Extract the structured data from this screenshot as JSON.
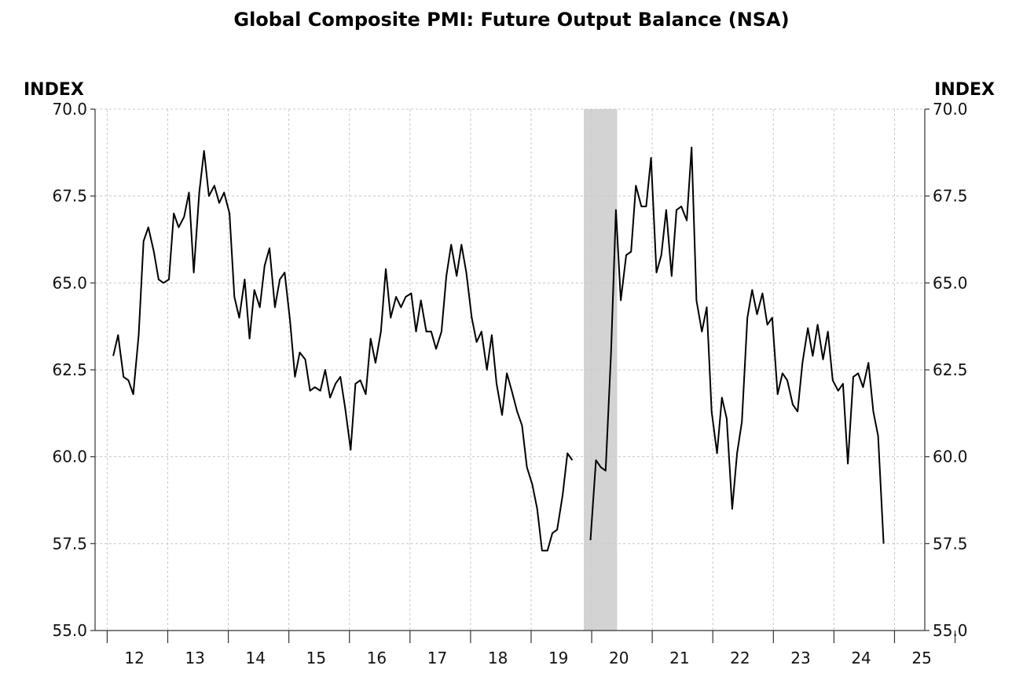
{
  "chart_data": {
    "type": "line",
    "title": "Global Composite PMI: Future Output Balance (NSA)",
    "ylabel_left": "INDEX",
    "ylabel_right": "INDEX",
    "ylim": [
      55.0,
      70.0
    ],
    "yticks": [
      "55.0",
      "57.5",
      "60.0",
      "62.5",
      "65.0",
      "67.5",
      "70.0"
    ],
    "yticks_right": [
      "55.0",
      "57.5",
      "60.0",
      "62.5",
      "65.0",
      "67.5",
      "70.0"
    ],
    "xlim": [
      2011.8,
      2025.5
    ],
    "xtick_labels": [
      "12",
      "13",
      "14",
      "15",
      "16",
      "17",
      "18",
      "19",
      "20",
      "21",
      "22",
      "23",
      "24",
      "25"
    ],
    "grid": true,
    "shaded_period": [
      2019.87,
      2020.42
    ],
    "series": [
      {
        "values": [
          [
            2012.1,
            62.9
          ],
          [
            2012.18,
            63.5
          ],
          [
            2012.27,
            62.3
          ],
          [
            2012.35,
            62.2
          ],
          [
            2012.43,
            61.8
          ],
          [
            2012.52,
            63.5
          ],
          [
            2012.6,
            66.2
          ],
          [
            2012.68,
            66.6
          ],
          [
            2012.77,
            65.9
          ],
          [
            2012.85,
            65.1
          ],
          [
            2012.93,
            65.0
          ],
          [
            2013.02,
            65.1
          ],
          [
            2013.1,
            67.0
          ],
          [
            2013.18,
            66.6
          ],
          [
            2013.27,
            66.9
          ],
          [
            2013.35,
            67.6
          ],
          [
            2013.43,
            65.3
          ],
          [
            2013.52,
            67.6
          ],
          [
            2013.6,
            68.8
          ],
          [
            2013.68,
            67.5
          ],
          [
            2013.77,
            67.8
          ],
          [
            2013.85,
            67.3
          ],
          [
            2013.93,
            67.6
          ],
          [
            2014.02,
            67.0
          ],
          [
            2014.1,
            64.6
          ],
          [
            2014.18,
            64.0
          ],
          [
            2014.27,
            65.1
          ],
          [
            2014.35,
            63.4
          ],
          [
            2014.43,
            64.8
          ],
          [
            2014.52,
            64.3
          ],
          [
            2014.6,
            65.5
          ],
          [
            2014.68,
            66.0
          ],
          [
            2014.77,
            64.3
          ],
          [
            2014.85,
            65.1
          ],
          [
            2014.93,
            65.3
          ],
          [
            2015.02,
            63.9
          ],
          [
            2015.1,
            62.3
          ],
          [
            2015.18,
            63.0
          ],
          [
            2015.27,
            62.8
          ],
          [
            2015.35,
            61.9
          ],
          [
            2015.43,
            62.0
          ],
          [
            2015.52,
            61.9
          ],
          [
            2015.6,
            62.5
          ],
          [
            2015.68,
            61.7
          ],
          [
            2015.77,
            62.1
          ],
          [
            2015.85,
            62.3
          ],
          [
            2015.93,
            61.4
          ],
          [
            2016.02,
            60.2
          ],
          [
            2016.1,
            62.1
          ],
          [
            2016.18,
            62.2
          ],
          [
            2016.27,
            61.8
          ],
          [
            2016.35,
            63.4
          ],
          [
            2016.43,
            62.7
          ],
          [
            2016.52,
            63.6
          ],
          [
            2016.6,
            65.4
          ],
          [
            2016.68,
            64.0
          ],
          [
            2016.77,
            64.6
          ],
          [
            2016.85,
            64.3
          ],
          [
            2016.93,
            64.6
          ],
          [
            2017.02,
            64.7
          ],
          [
            2017.1,
            63.6
          ],
          [
            2017.18,
            64.5
          ],
          [
            2017.27,
            63.6
          ],
          [
            2017.35,
            63.6
          ],
          [
            2017.43,
            63.1
          ],
          [
            2017.52,
            63.6
          ],
          [
            2017.6,
            65.2
          ],
          [
            2017.68,
            66.1
          ],
          [
            2017.77,
            65.2
          ],
          [
            2017.85,
            66.1
          ],
          [
            2017.93,
            65.3
          ],
          [
            2018.02,
            64.0
          ],
          [
            2018.1,
            63.3
          ],
          [
            2018.18,
            63.6
          ],
          [
            2018.27,
            62.5
          ],
          [
            2018.35,
            63.5
          ],
          [
            2018.43,
            62.1
          ],
          [
            2018.52,
            61.2
          ],
          [
            2018.6,
            62.4
          ],
          [
            2018.68,
            61.9
          ],
          [
            2018.77,
            61.3
          ],
          [
            2018.85,
            60.9
          ],
          [
            2018.93,
            59.7
          ],
          [
            2019.02,
            59.2
          ],
          [
            2019.1,
            58.5
          ],
          [
            2019.18,
            57.3
          ],
          [
            2019.27,
            57.3
          ],
          [
            2019.35,
            57.8
          ],
          [
            2019.43,
            57.9
          ],
          [
            2019.52,
            58.9
          ],
          [
            2019.6,
            60.1
          ],
          [
            2019.68,
            59.9
          ]
        ]
      },
      {
        "values": [
          [
            2019.98,
            57.6
          ],
          [
            2020.07,
            59.9
          ],
          [
            2020.15,
            59.7
          ],
          [
            2020.23,
            59.6
          ],
          [
            2020.32,
            63.0
          ],
          [
            2020.4,
            67.1
          ],
          [
            2020.48,
            64.5
          ],
          [
            2020.57,
            65.8
          ],
          [
            2020.65,
            65.9
          ],
          [
            2020.73,
            67.8
          ],
          [
            2020.82,
            67.2
          ],
          [
            2020.9,
            67.2
          ],
          [
            2020.98,
            68.6
          ],
          [
            2021.07,
            65.3
          ],
          [
            2021.15,
            65.8
          ],
          [
            2021.23,
            67.1
          ],
          [
            2021.32,
            65.2
          ],
          [
            2021.4,
            67.1
          ],
          [
            2021.48,
            67.2
          ],
          [
            2021.57,
            66.8
          ],
          [
            2021.65,
            68.9
          ],
          [
            2021.73,
            64.5
          ],
          [
            2021.82,
            63.6
          ],
          [
            2021.9,
            64.3
          ],
          [
            2021.98,
            61.3
          ],
          [
            2022.07,
            60.1
          ],
          [
            2022.15,
            61.7
          ],
          [
            2022.23,
            61.1
          ],
          [
            2022.32,
            58.5
          ],
          [
            2022.4,
            60.1
          ],
          [
            2022.48,
            61.0
          ],
          [
            2022.57,
            64.0
          ],
          [
            2022.65,
            64.8
          ],
          [
            2022.73,
            64.1
          ],
          [
            2022.82,
            64.7
          ],
          [
            2022.9,
            63.8
          ],
          [
            2022.98,
            64.0
          ],
          [
            2023.07,
            61.8
          ],
          [
            2023.15,
            62.4
          ],
          [
            2023.23,
            62.2
          ],
          [
            2023.32,
            61.5
          ],
          [
            2023.4,
            61.3
          ],
          [
            2023.48,
            62.7
          ],
          [
            2023.57,
            63.7
          ],
          [
            2023.65,
            62.9
          ],
          [
            2023.73,
            63.8
          ],
          [
            2023.82,
            62.8
          ],
          [
            2023.9,
            63.6
          ],
          [
            2023.98,
            62.2
          ],
          [
            2024.07,
            61.9
          ],
          [
            2024.15,
            62.1
          ],
          [
            2024.23,
            59.8
          ],
          [
            2024.32,
            62.3
          ],
          [
            2024.4,
            62.4
          ],
          [
            2024.48,
            62.0
          ],
          [
            2024.57,
            62.7
          ],
          [
            2024.65,
            61.3
          ],
          [
            2024.73,
            60.6
          ],
          [
            2024.82,
            57.5
          ]
        ]
      }
    ]
  }
}
